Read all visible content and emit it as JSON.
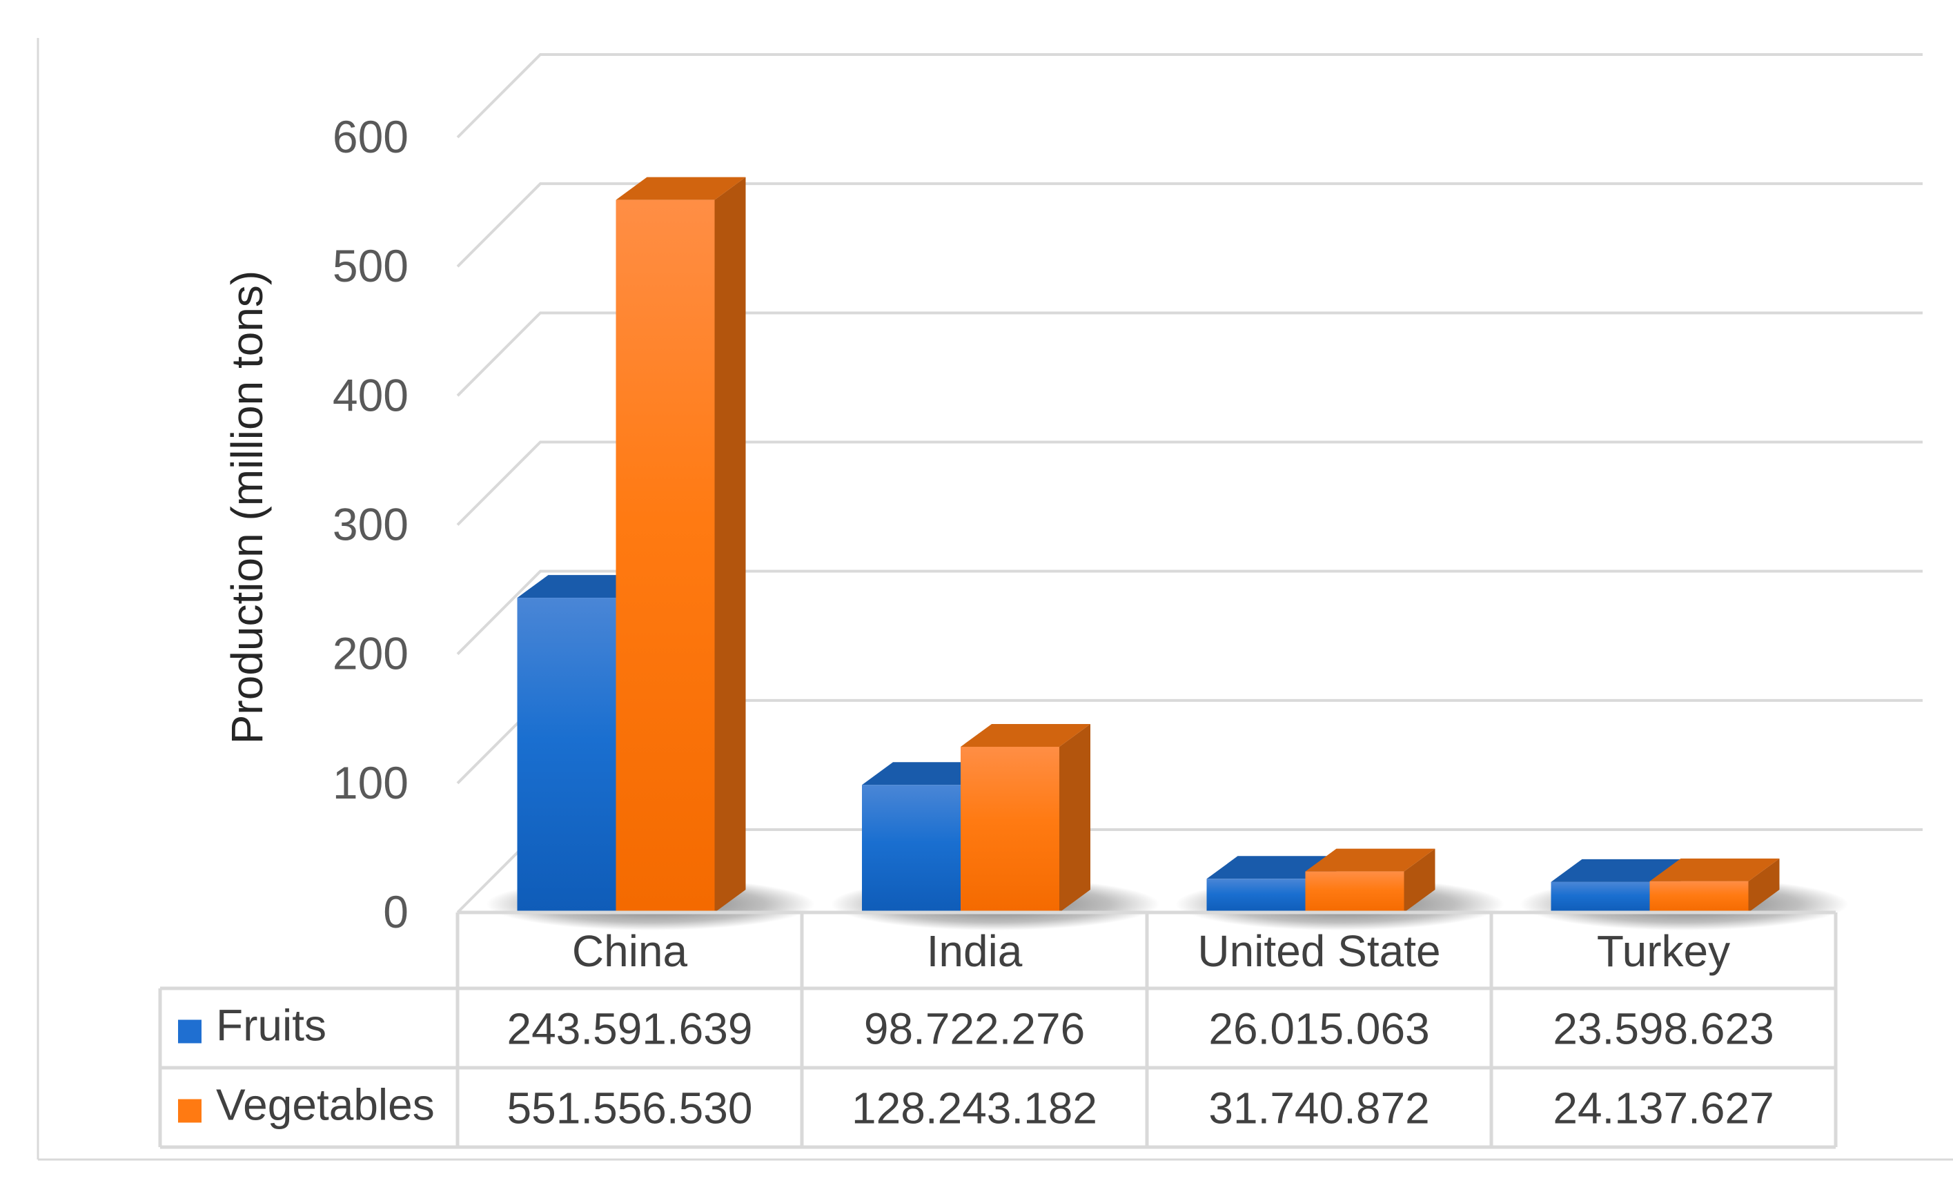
{
  "chart_data": {
    "type": "bar",
    "style": "3d-clustered-column-with-data-table",
    "ylabel": "Production (million tons)",
    "xlabel": "",
    "ylim": [
      0,
      600
    ],
    "yticks": [
      0,
      100,
      200,
      300,
      400,
      500,
      600
    ],
    "grid": true,
    "categories": [
      "China",
      "India",
      "United State",
      "Turkey"
    ],
    "series": [
      {
        "name": "Fruits",
        "color": "#1f6fd1",
        "values": [
          243.591639,
          98.722276,
          26.015063,
          23.598623
        ],
        "table_labels": [
          "243.591.639",
          "98.722.276",
          "26.015.063",
          "23.598.623"
        ]
      },
      {
        "name": "Vegetables",
        "color": "#ff7a12",
        "values": [
          551.55653,
          128.243182,
          31.740872,
          24.137627
        ],
        "table_labels": [
          "551.556.530",
          "128.243.182",
          "31.740.872",
          "24.137.627"
        ]
      }
    ]
  }
}
